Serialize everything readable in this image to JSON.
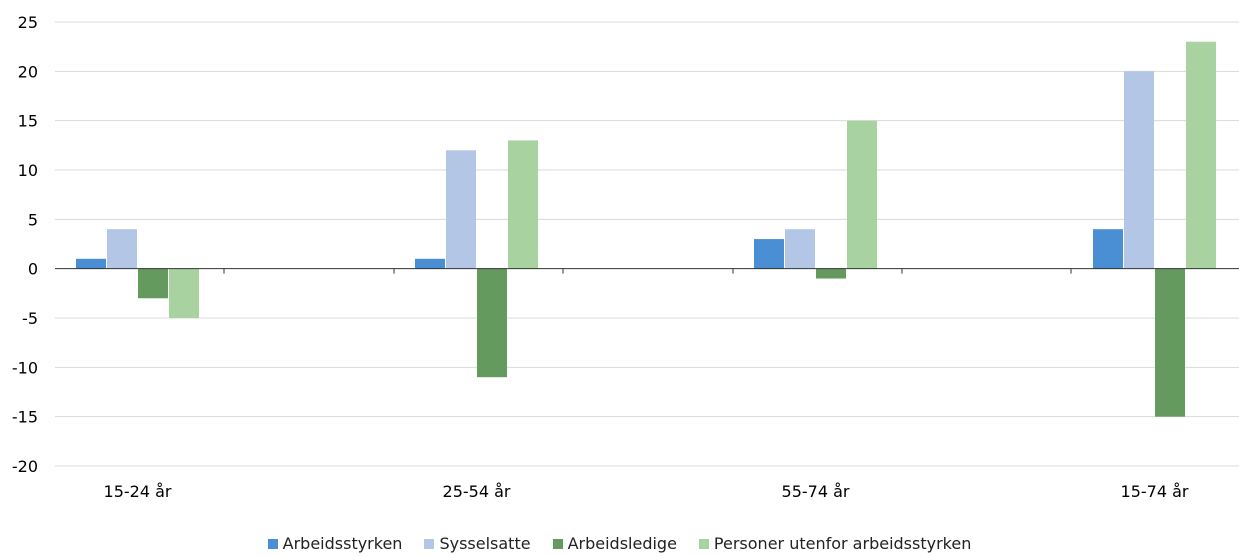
{
  "chart_data": {
    "type": "bar",
    "title": "",
    "xlabel": "",
    "ylabel": "",
    "categories": [
      "15-24 år",
      "25-54 år",
      "55-74 år",
      "15-74 år"
    ],
    "ylim": [
      -20,
      25
    ],
    "yticks": [
      25,
      20,
      15,
      10,
      5,
      0,
      -5,
      -10,
      -15,
      -20
    ],
    "ytick_labels": [
      "25",
      "20",
      "15",
      "10",
      "5",
      "0",
      "-5",
      "-10",
      "-15",
      "-20"
    ],
    "grid": true,
    "legend_position": "bottom",
    "series": [
      {
        "name": "Arbeidsstyrken",
        "color": "#4a8fd4",
        "values": [
          1,
          1,
          3,
          4
        ]
      },
      {
        "name": "Sysselsatte",
        "color": "#b4c6e6",
        "values": [
          4,
          12,
          4,
          20
        ]
      },
      {
        "name": "Arbeidsledige",
        "color": "#649a5e",
        "values": [
          -3,
          -11,
          -1,
          -15
        ]
      },
      {
        "name": "Personer utenfor arbeidsstyrken",
        "color": "#a8d29f",
        "values": [
          -5,
          13,
          15,
          23
        ]
      }
    ]
  }
}
